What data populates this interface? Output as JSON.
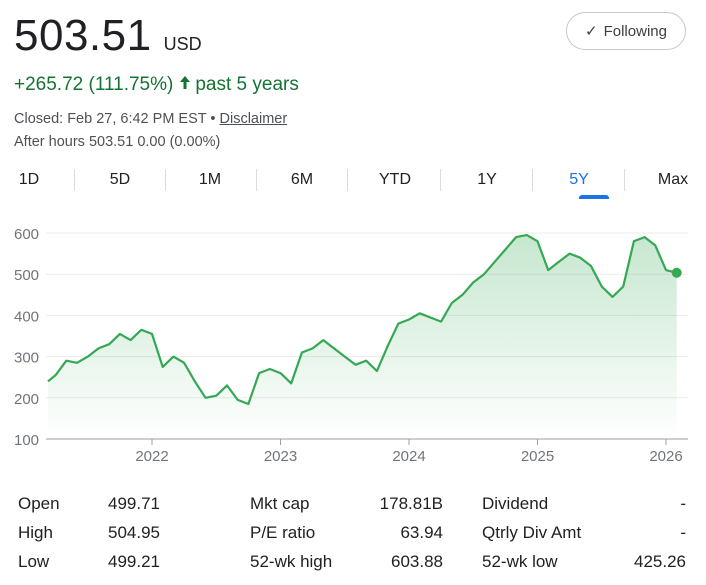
{
  "quote": {
    "price": "503.51",
    "currency": "USD",
    "follow_label": "Following",
    "change": "+265.72 (111.75%)",
    "change_period": "past 5 years",
    "closed_text": "Closed: Feb 27, 6:42 PM EST",
    "separator": "•",
    "disclaimer": "Disclaimer",
    "after_hours": "After hours 503.51 0.00 (0.00%)"
  },
  "tabs": [
    {
      "label": "1D",
      "active": false
    },
    {
      "label": "5D",
      "active": false
    },
    {
      "label": "1M",
      "active": false
    },
    {
      "label": "6M",
      "active": false
    },
    {
      "label": "YTD",
      "active": false
    },
    {
      "label": "1Y",
      "active": false
    },
    {
      "label": "5Y",
      "active": true
    },
    {
      "label": "Max",
      "active": false
    }
  ],
  "colors": {
    "positive": "#137333",
    "line": "#34a853",
    "accent": "#1a73e8"
  },
  "chart_data": {
    "type": "area",
    "ylim": [
      100,
      620
    ],
    "y_ticks": [
      "600",
      "500",
      "400",
      "300",
      "200",
      "100"
    ],
    "x_ticks": [
      "2022",
      "2023",
      "2024",
      "2025",
      "2026"
    ],
    "series": [
      {
        "x": [
          "2021-03",
          "2021-04",
          "2021-05",
          "2021-06",
          "2021-07",
          "2021-08",
          "2021-09",
          "2021-10",
          "2021-11",
          "2021-12",
          "2022-01",
          "2022-02",
          "2022-03",
          "2022-04",
          "2022-05",
          "2022-06",
          "2022-07",
          "2022-08",
          "2022-09",
          "2022-10",
          "2022-11",
          "2022-12",
          "2023-01",
          "2023-02",
          "2023-03",
          "2023-04",
          "2023-05",
          "2023-06",
          "2023-07",
          "2023-08",
          "2023-09",
          "2023-10",
          "2023-11",
          "2023-12",
          "2024-01",
          "2024-02",
          "2024-03",
          "2024-04",
          "2024-05",
          "2024-06",
          "2024-07",
          "2024-08",
          "2024-09",
          "2024-10",
          "2024-11",
          "2024-12",
          "2025-01",
          "2025-02",
          "2025-03",
          "2025-04",
          "2025-05",
          "2025-06",
          "2025-07",
          "2025-08",
          "2025-09",
          "2025-10",
          "2025-11",
          "2025-12",
          "2026-01",
          "2026-02"
        ],
        "y": [
          240,
          255,
          290,
          285,
          300,
          320,
          330,
          355,
          340,
          365,
          355,
          275,
          300,
          285,
          240,
          200,
          205,
          230,
          195,
          185,
          260,
          270,
          260,
          235,
          310,
          320,
          340,
          320,
          300,
          280,
          290,
          265,
          325,
          380,
          390,
          405,
          395,
          385,
          430,
          450,
          480,
          500,
          530,
          560,
          590,
          595,
          580,
          510,
          530,
          550,
          540,
          520,
          470,
          445,
          470,
          580,
          590,
          570,
          510,
          503.51
        ]
      }
    ]
  },
  "stats": [
    [
      {
        "label": "Open",
        "value": "499.71"
      },
      {
        "label": "High",
        "value": "504.95"
      },
      {
        "label": "Low",
        "value": "499.21"
      }
    ],
    [
      {
        "label": "Mkt cap",
        "value": "178.81B"
      },
      {
        "label": "P/E ratio",
        "value": "63.94"
      },
      {
        "label": "52-wk high",
        "value": "603.88"
      }
    ],
    [
      {
        "label": "Dividend",
        "value": "-"
      },
      {
        "label": "Qtrly Div Amt",
        "value": "-"
      },
      {
        "label": "52-wk low",
        "value": "425.26"
      }
    ]
  ]
}
